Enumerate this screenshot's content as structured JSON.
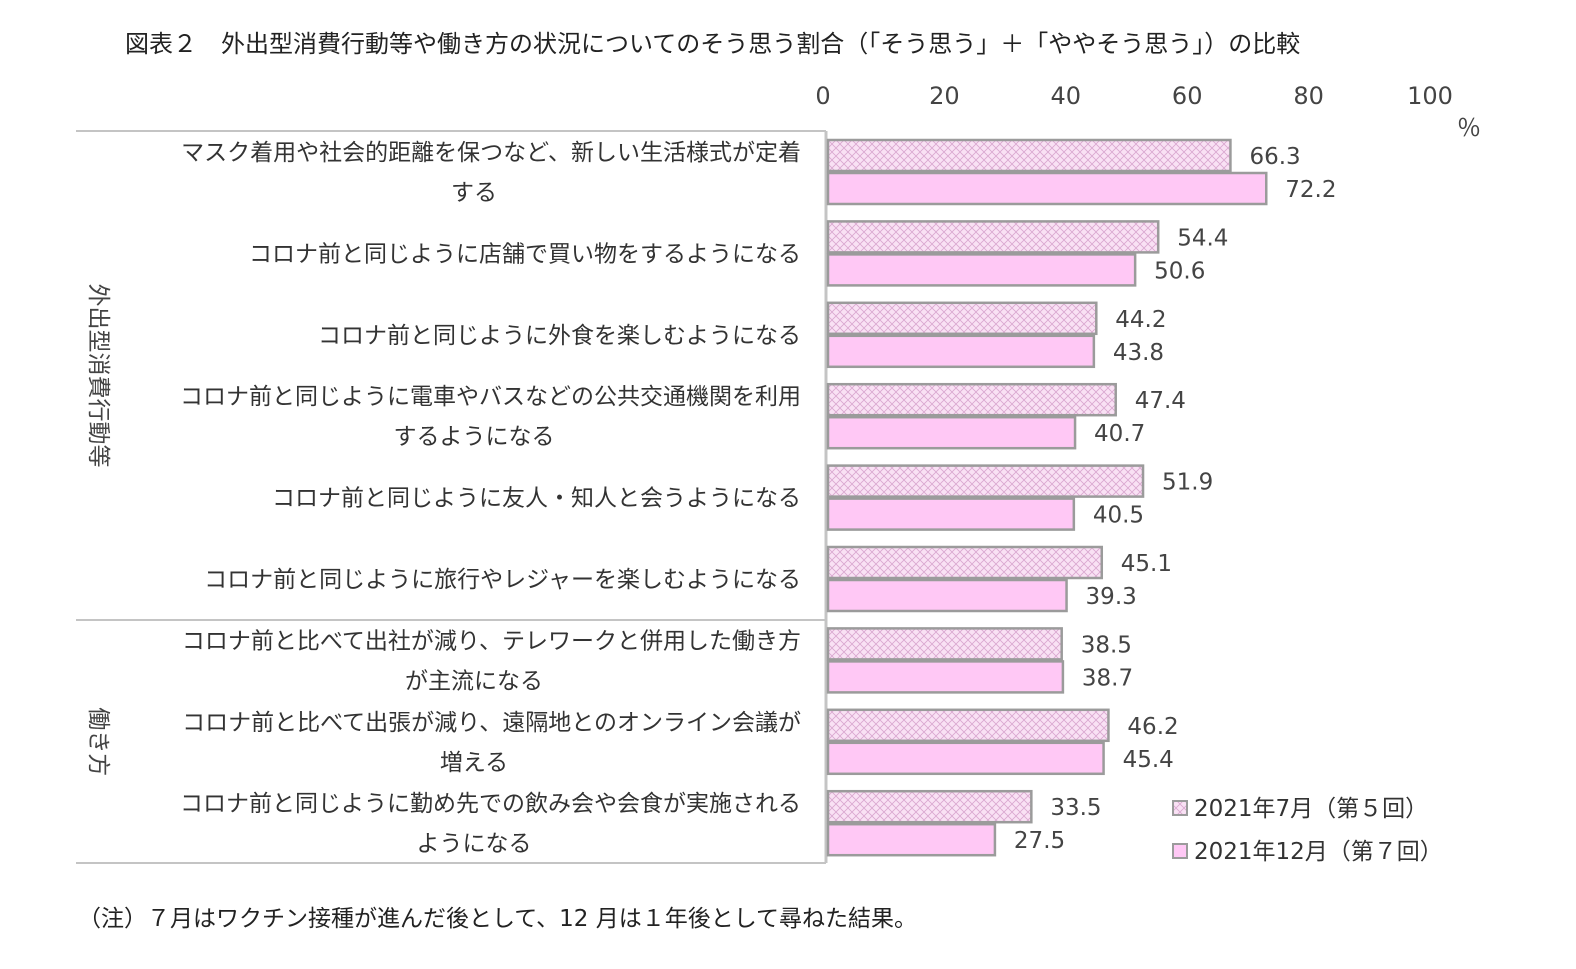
{
  "chart_data": {
    "type": "bar",
    "orientation": "horizontal",
    "title": "図表２　外出型消費行動等や働き方の状況についてのそう思う割合（「そう思う」＋「ややそう思う」）の比較",
    "unit": "％",
    "xlim": [
      0,
      100
    ],
    "xticks": [
      "0",
      "20",
      "40",
      "60",
      "80",
      "100"
    ],
    "grid": false,
    "legend_position": "bottom-right",
    "groups": [
      {
        "label": "外出型消費行動等",
        "categories": [
          0,
          1,
          2,
          3,
          4,
          5
        ]
      },
      {
        "label": "働き方",
        "categories": [
          6,
          7,
          8
        ]
      }
    ],
    "categories": [
      [
        "マスク着用や社会的距離を保つなど、新しい生活様式が定着",
        "する"
      ],
      [
        "コロナ前と同じように店舗で買い物をするようになる"
      ],
      [
        "コロナ前と同じように外食を楽しむようになる"
      ],
      [
        "コロナ前と同じように電車やバスなどの公共交通機関を利用",
        "するようになる"
      ],
      [
        "コロナ前と同じように友人・知人と会うようになる"
      ],
      [
        "コロナ前と同じように旅行やレジャーを楽しむようになる"
      ],
      [
        "コロナ前と比べて出社が減り、テレワークと併用した働き方",
        "が主流になる"
      ],
      [
        "コロナ前と比べて出張が減り、遠隔地とのオンライン会議が",
        "増える"
      ],
      [
        "コロナ前と同じように勤め先での飲み会や会食が実施される",
        "ようになる"
      ]
    ],
    "series": [
      {
        "name": "2021年7月（第５回）",
        "values": [
          66.3,
          54.4,
          44.2,
          47.4,
          51.9,
          45.1,
          38.5,
          46.2,
          33.5
        ],
        "labels": [
          "66.3",
          "54.4",
          "44.2",
          "47.4",
          "51.9",
          "45.1",
          "38.5",
          "46.2",
          "33.5"
        ]
      },
      {
        "name": "2021年12月（第７回）",
        "values": [
          72.2,
          50.6,
          43.8,
          40.7,
          40.5,
          39.3,
          38.7,
          45.4,
          27.5
        ],
        "labels": [
          "72.2",
          "50.6",
          "43.8",
          "40.7",
          "40.5",
          "39.3",
          "38.7",
          "45.4",
          "27.5"
        ]
      }
    ],
    "note": "（注）７月はワクチン接種が進んだ後として、12 月は１年後として尋ねた結果。"
  },
  "colors": {
    "series1_fill": "#f9e1f4",
    "series1_hatch": "#d9a6cf",
    "series2_fill": "#ffc8f5",
    "bar_border": "#9b9b9b",
    "frame": "#c4c4c4"
  }
}
